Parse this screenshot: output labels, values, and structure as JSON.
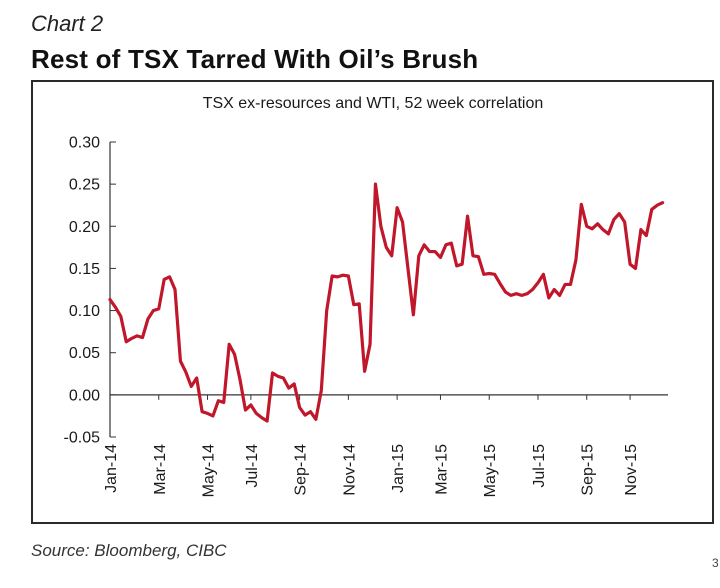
{
  "header": {
    "label": "Chart 2",
    "title": "Rest of TSX Tarred With Oil’s Brush"
  },
  "footer": {
    "source": "Source: Bloomberg, CIBC",
    "page_number": "3"
  },
  "colors": {
    "line": "#c0172b",
    "axis": "#333333",
    "frame": "#2a2a2a"
  },
  "chart_data": {
    "type": "line",
    "title": "TSX ex-resources and WTI, 52 week correlation",
    "xlabel": "",
    "ylabel": "",
    "ylim": [
      -0.05,
      0.3
    ],
    "yticks": [
      -0.05,
      0.0,
      0.05,
      0.1,
      0.15,
      0.2,
      0.25,
      0.3
    ],
    "ytick_labels": [
      "-0.05",
      "0.00",
      "0.05",
      "0.10",
      "0.15",
      "0.20",
      "0.25",
      "0.30"
    ],
    "xlim": [
      0,
      103
    ],
    "xtick_labels": [
      "Jan-14",
      "Mar-14",
      "May-14",
      "Jul-14",
      "Sep-14",
      "Nov-14",
      "Jan-15",
      "Mar-15",
      "May-15",
      "Jul-15",
      "Sep-15",
      "Nov-15"
    ],
    "xtick_positions": [
      0,
      9,
      18,
      26,
      35,
      44,
      53,
      61,
      70,
      79,
      88,
      96
    ],
    "grid": false,
    "legend": "none",
    "series": [
      {
        "values": [
          0.113,
          0.104,
          0.093,
          0.063,
          0.067,
          0.07,
          0.068,
          0.09,
          0.1,
          0.102,
          0.137,
          0.14,
          0.125,
          0.04,
          0.027,
          0.01,
          0.02,
          -0.02,
          -0.022,
          -0.025,
          -0.007,
          -0.009,
          0.06,
          0.048,
          0.018,
          -0.018,
          -0.012,
          -0.022,
          -0.027,
          -0.031,
          0.026,
          0.022,
          0.02,
          0.008,
          0.013,
          -0.015,
          -0.024,
          -0.02,
          -0.029,
          0.005,
          0.1,
          0.141,
          0.14,
          0.142,
          0.141,
          0.107,
          0.108,
          0.028,
          0.06,
          0.25,
          0.2,
          0.175,
          0.165,
          0.222,
          0.205,
          0.15,
          0.095,
          0.165,
          0.178,
          0.17,
          0.17,
          0.163,
          0.178,
          0.18,
          0.153,
          0.155,
          0.212,
          0.165,
          0.164,
          0.143,
          0.144,
          0.143,
          0.132,
          0.122,
          0.118,
          0.12,
          0.118,
          0.12,
          0.125,
          0.133,
          0.143,
          0.115,
          0.125,
          0.118,
          0.131,
          0.131,
          0.16,
          0.226,
          0.2,
          0.197,
          0.203,
          0.196,
          0.191,
          0.208,
          0.215,
          0.205,
          0.155,
          0.15,
          0.196,
          0.189,
          0.22,
          0.225,
          0.228
        ]
      }
    ]
  }
}
